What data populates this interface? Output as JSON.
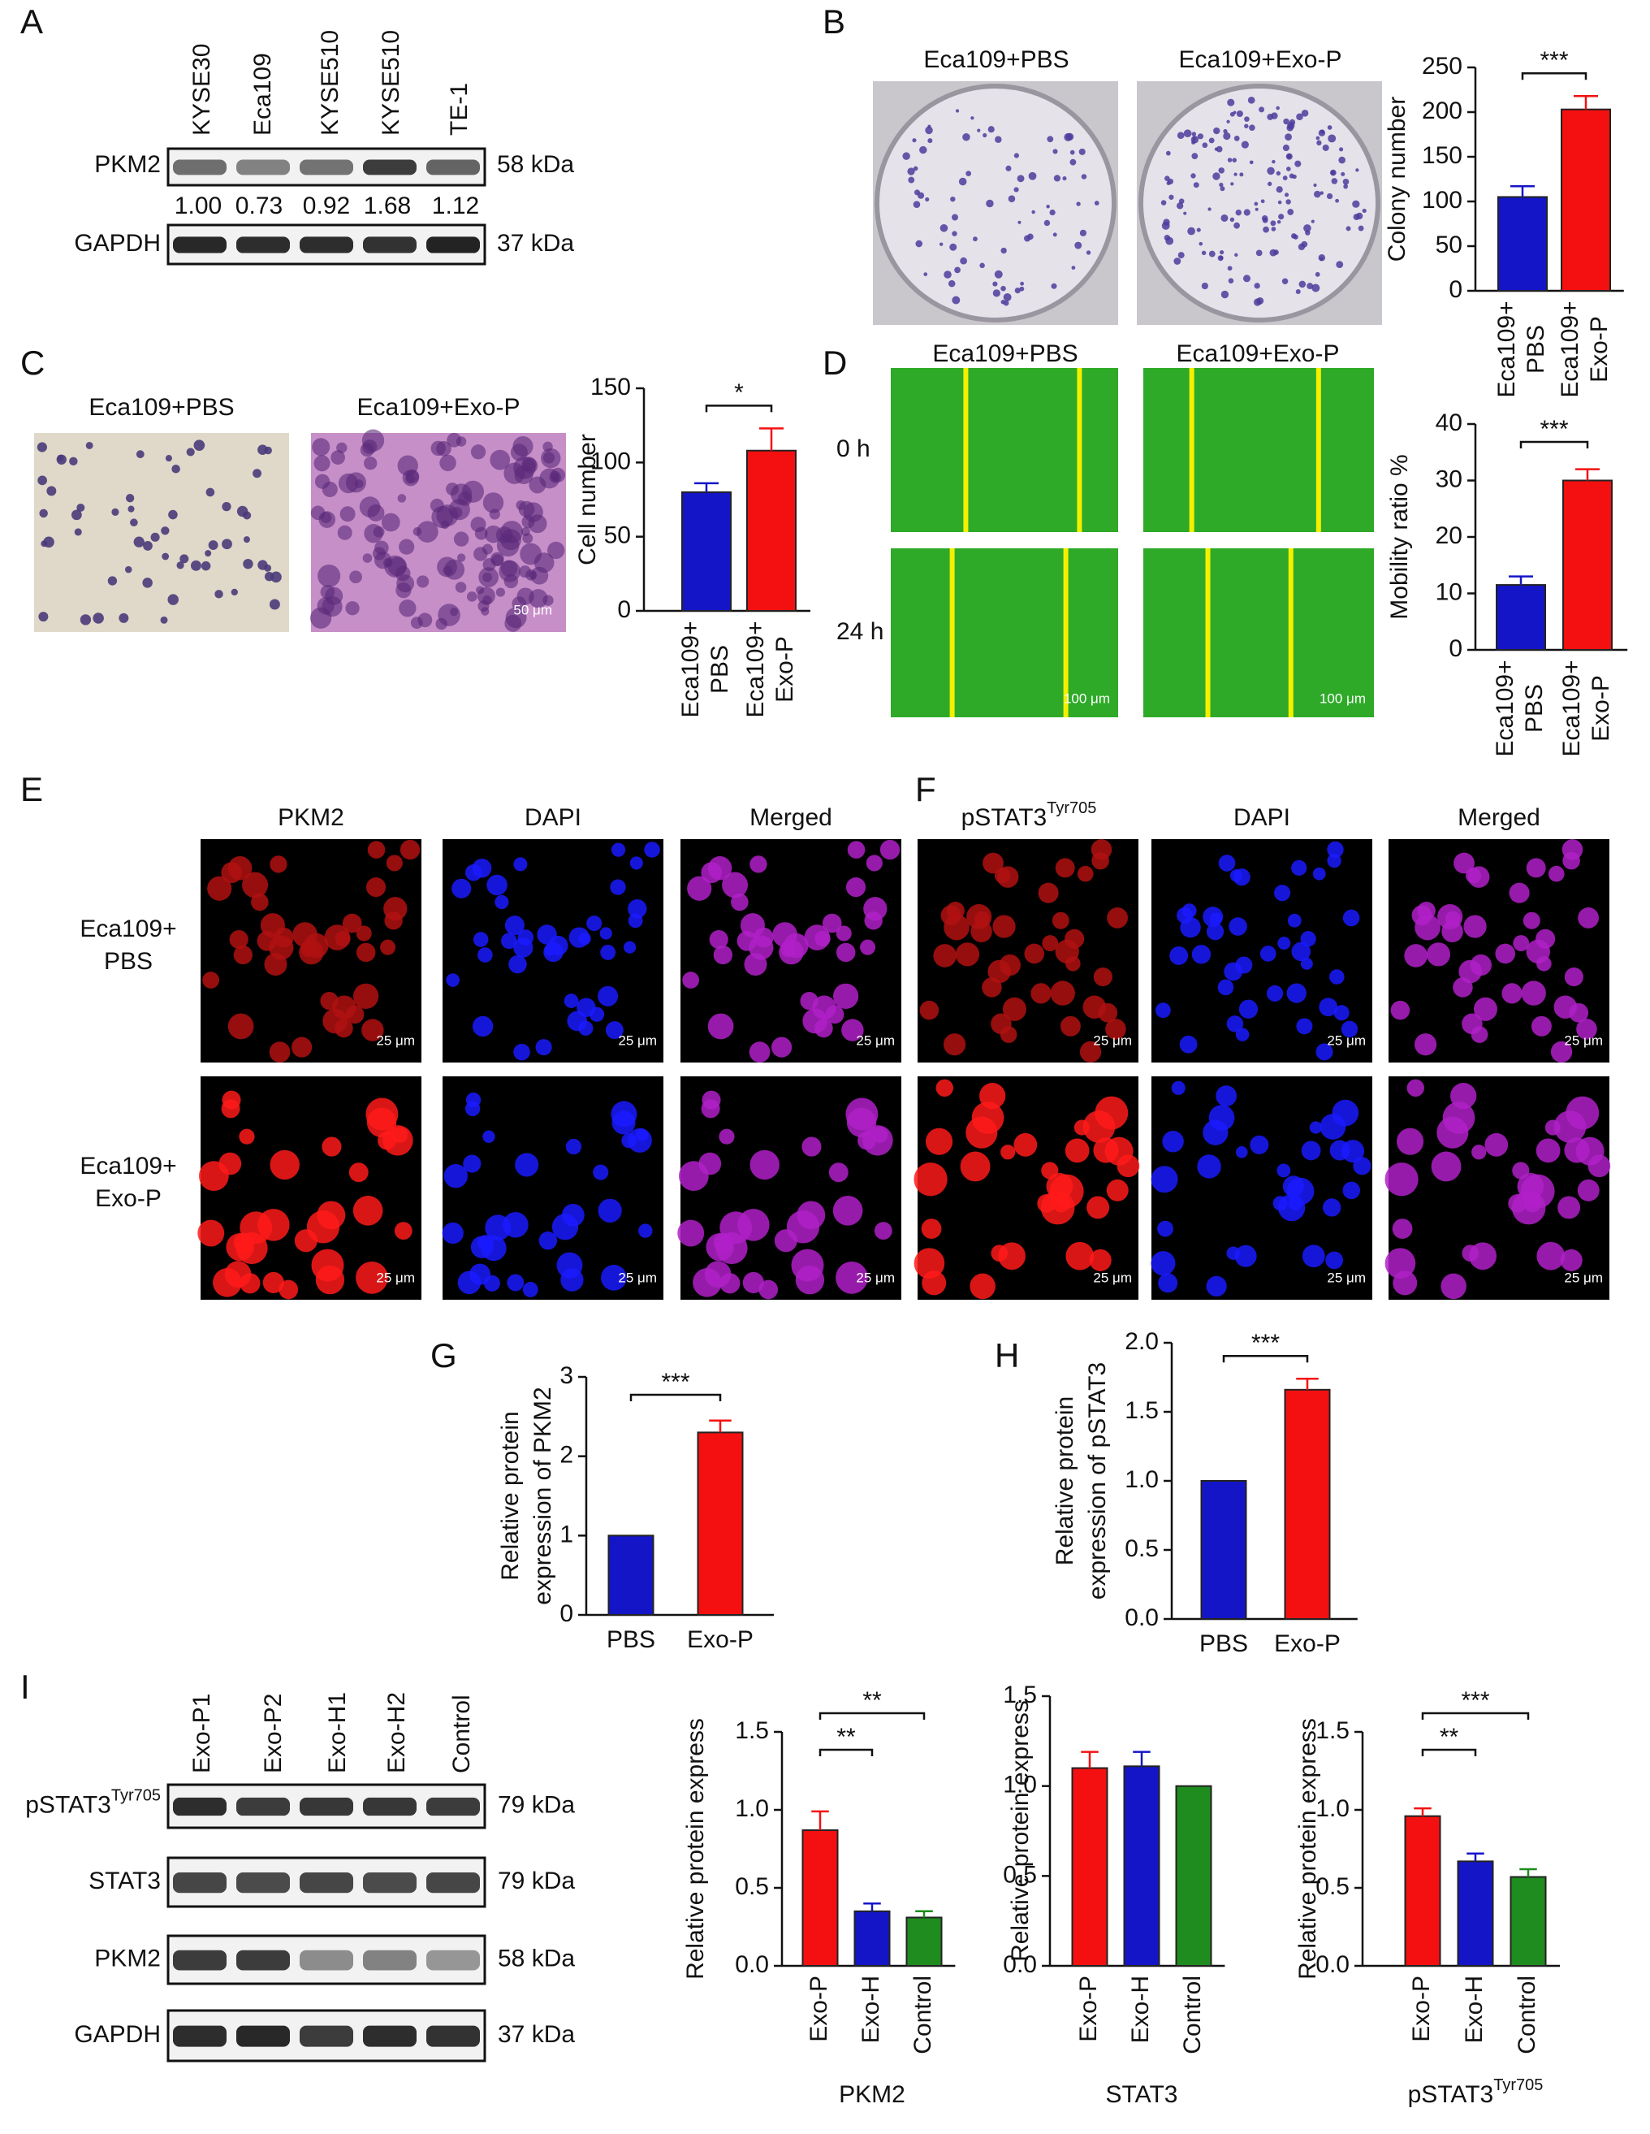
{
  "panel_labels": [
    "A",
    "B",
    "C",
    "D",
    "E",
    "F",
    "G",
    "H",
    "I"
  ],
  "panel_a": {
    "lanes": [
      "KYSE30",
      "Eca109",
      "KYSE510",
      "KYSE510",
      "TE-1"
    ],
    "proteins": [
      "PKM2",
      "GAPDH"
    ],
    "sizes": [
      "58 kDa",
      "37 kDa"
    ],
    "ratios": [
      "1.00",
      "0.73",
      "0.92",
      "1.68",
      "1.12"
    ]
  },
  "panel_b": {
    "image_titles": [
      "Eca109+PBS",
      "Eca109+Exo-P"
    ]
  },
  "panel_c": {
    "image_titles": [
      "Eca109+PBS",
      "Eca109+Exo-P"
    ],
    "scale_bar": "50 μm"
  },
  "panel_d": {
    "image_titles": [
      "Eca109+PBS",
      "Eca109+Exo-P"
    ],
    "times": [
      "0 h",
      "24 h"
    ],
    "scale_bar": "100 μm"
  },
  "panel_e": {
    "columns": [
      "PKM2",
      "DAPI",
      "Merged"
    ],
    "rows": [
      [
        "Eca109+",
        "PBS"
      ],
      [
        "Eca109+",
        "Exo-P"
      ]
    ],
    "scale_bar": "25 μm"
  },
  "panel_f": {
    "columns": [
      {
        "text": "pSTAT3",
        "sup": "Tyr705"
      },
      "DAPI",
      "Merged"
    ],
    "scale_bar": "25 μm"
  },
  "panel_i": {
    "lanes": [
      "Exo-P1",
      "Exo-P2",
      "Exo-H1",
      "Exo-H2",
      "Control"
    ],
    "proteins": [
      {
        "text": "pSTAT3",
        "sup": "Tyr705"
      },
      "STAT3",
      "PKM2",
      "GAPDH"
    ],
    "sizes": [
      "79 kDa",
      "79 kDa",
      "58 kDa",
      "37 kDa"
    ]
  },
  "chart_data": [
    {
      "type": "bar",
      "ylabel": [
        "Colony number"
      ],
      "categories": [
        [
          "Eca109+",
          "PBS"
        ],
        [
          "Eca109+",
          "Exo-P"
        ]
      ],
      "values": [
        105,
        203
      ],
      "errors": [
        12,
        15
      ],
      "colors": [
        "#1515c8",
        "#f41010"
      ],
      "ylim": [
        0,
        250
      ],
      "yticks": [
        0,
        50,
        100,
        150,
        200,
        250
      ],
      "significance": [
        {
          "pair": [
            0,
            1
          ],
          "label": "***"
        }
      ]
    },
    {
      "type": "bar",
      "ylabel": [
        "Cell number"
      ],
      "categories": [
        [
          "Eca109+",
          "PBS"
        ],
        [
          "Eca109+",
          "Exo-P"
        ]
      ],
      "values": [
        80,
        108
      ],
      "errors": [
        6,
        15
      ],
      "colors": [
        "#1515c8",
        "#f41010"
      ],
      "ylim": [
        0,
        150
      ],
      "yticks": [
        0,
        50,
        100,
        150
      ],
      "significance": [
        {
          "pair": [
            0,
            1
          ],
          "label": "*"
        }
      ]
    },
    {
      "type": "bar",
      "ylabel": [
        "Mobility ratio %"
      ],
      "categories": [
        [
          "Eca109+",
          "PBS"
        ],
        [
          "Eca109+",
          "Exo-P"
        ]
      ],
      "values": [
        11.5,
        30
      ],
      "errors": [
        1.5,
        2
      ],
      "colors": [
        "#1515c8",
        "#f41010"
      ],
      "ylim": [
        0,
        40
      ],
      "yticks": [
        0,
        10,
        20,
        30,
        40
      ],
      "significance": [
        {
          "pair": [
            0,
            1
          ],
          "label": "***"
        }
      ]
    },
    {
      "type": "bar",
      "ylabel": [
        "Relative protein",
        "expression of PKM2"
      ],
      "categories": [
        "PBS",
        "Exo-P"
      ],
      "values": [
        1,
        2.3
      ],
      "errors": [
        null,
        0.15
      ],
      "colors": [
        "#1515c8",
        "#f41010"
      ],
      "ylim": [
        0,
        3
      ],
      "yticks": [
        0,
        1,
        2,
        3
      ],
      "significance": [
        {
          "pair": [
            0,
            1
          ],
          "label": "***"
        }
      ]
    },
    {
      "type": "bar",
      "ylabel": [
        "Relative protein",
        "expression of pSTAT3"
      ],
      "categories": [
        "PBS",
        "Exo-P"
      ],
      "values": [
        1,
        1.66
      ],
      "errors": [
        null,
        0.08
      ],
      "colors": [
        "#1515c8",
        "#f41010"
      ],
      "ylim": [
        0,
        2
      ],
      "yticks": [
        {
          "value": 0,
          "label": "0.0"
        },
        0.5,
        {
          "value": 1,
          "label": "1.0"
        },
        1.5,
        {
          "value": 2,
          "label": "2.0"
        }
      ],
      "significance": [
        {
          "pair": [
            0,
            1
          ],
          "label": "***"
        }
      ]
    },
    {
      "type": "bar",
      "ylabel": [
        "Relative protein express"
      ],
      "xlabel": "PKM2",
      "categories": [
        "Exo-P",
        "Exo-H",
        "Control"
      ],
      "values": [
        0.87,
        0.35,
        0.31
      ],
      "errors": [
        0.12,
        0.05,
        0.04
      ],
      "colors": [
        "#f41010",
        "#1515c8",
        "#1e8c1e"
      ],
      "ylim": [
        0,
        1.5
      ],
      "yticks": [
        {
          "value": 0,
          "label": "0.0"
        },
        0.5,
        {
          "value": 1,
          "label": "1.0"
        },
        1.5
      ],
      "significance": [
        {
          "pair": [
            0,
            1
          ],
          "label": "**"
        },
        {
          "pair": [
            0,
            2
          ],
          "label": "**"
        }
      ]
    },
    {
      "type": "bar",
      "ylabel": [
        "Relative protein express"
      ],
      "xlabel": "STAT3",
      "categories": [
        "Exo-P",
        "Exo-H",
        "Control"
      ],
      "values": [
        1.1,
        1.11,
        1.0
      ],
      "errors": [
        0.09,
        0.08,
        null
      ],
      "colors": [
        "#f41010",
        "#1515c8",
        "#1e8c1e"
      ],
      "ylim": [
        0,
        1.5
      ],
      "yticks": [
        {
          "value": 0,
          "label": "0.0"
        },
        0.5,
        {
          "value": 1,
          "label": "1.0"
        },
        1.5
      ]
    },
    {
      "type": "bar",
      "ylabel": [
        "Relative protein express"
      ],
      "xlabel": {
        "text": "pSTAT3",
        "sup": "Tyr705"
      },
      "categories": [
        "Exo-P",
        "Exo-H",
        "Control"
      ],
      "values": [
        0.96,
        0.67,
        0.57
      ],
      "errors": [
        0.05,
        0.05,
        0.05
      ],
      "colors": [
        "#f41010",
        "#1515c8",
        "#1e8c1e"
      ],
      "ylim": [
        0,
        1.5
      ],
      "yticks": [
        {
          "value": 0,
          "label": "0.0"
        },
        0.5,
        {
          "value": 1,
          "label": "1.0"
        },
        1.5
      ],
      "significance": [
        {
          "pair": [
            0,
            1
          ],
          "label": "**"
        },
        {
          "pair": [
            0,
            2
          ],
          "label": "***"
        }
      ]
    }
  ]
}
